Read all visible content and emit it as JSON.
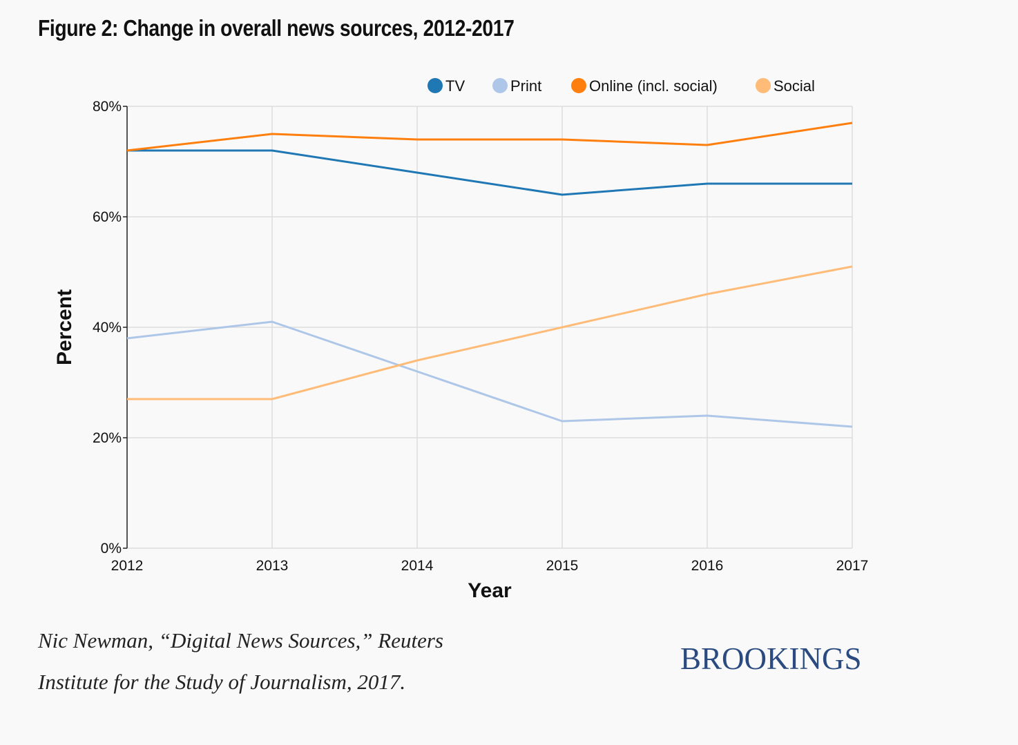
{
  "title": "Figure 2: Change in overall news sources, 2012-2017",
  "source_line1": "Nic Newman, “Digital News Sources,” Reuters",
  "source_line2": "Institute for the Study of Journalism, 2017.",
  "brand": "BROOKINGS",
  "colors": {
    "tv": "#1f77b4",
    "print": "#aec7e8",
    "online": "#ff7f0e",
    "social": "#ffbb78",
    "brand": "#2b4b80"
  },
  "chart_data": {
    "type": "line",
    "x": [
      "2012",
      "2013",
      "2014",
      "2015",
      "2016",
      "2017"
    ],
    "xlabel": "Year",
    "ylabel": "Percent",
    "ylim": [
      0,
      80
    ],
    "yticks": [
      "0%",
      "20%",
      "40%",
      "60%",
      "80%"
    ],
    "grid": true,
    "legend_position": "top-right",
    "series": [
      {
        "name": "TV",
        "color": "#1f77b4",
        "values": [
          72,
          72,
          68,
          64,
          66,
          66
        ]
      },
      {
        "name": "Print",
        "color": "#aec7e8",
        "values": [
          38,
          41,
          32,
          23,
          24,
          22
        ]
      },
      {
        "name": "Online (incl. social)",
        "color": "#ff7f0e",
        "values": [
          72,
          75,
          74,
          74,
          73,
          77
        ]
      },
      {
        "name": "Social",
        "color": "#ffbb78",
        "values": [
          27,
          27,
          34,
          40,
          46,
          51
        ]
      }
    ]
  }
}
